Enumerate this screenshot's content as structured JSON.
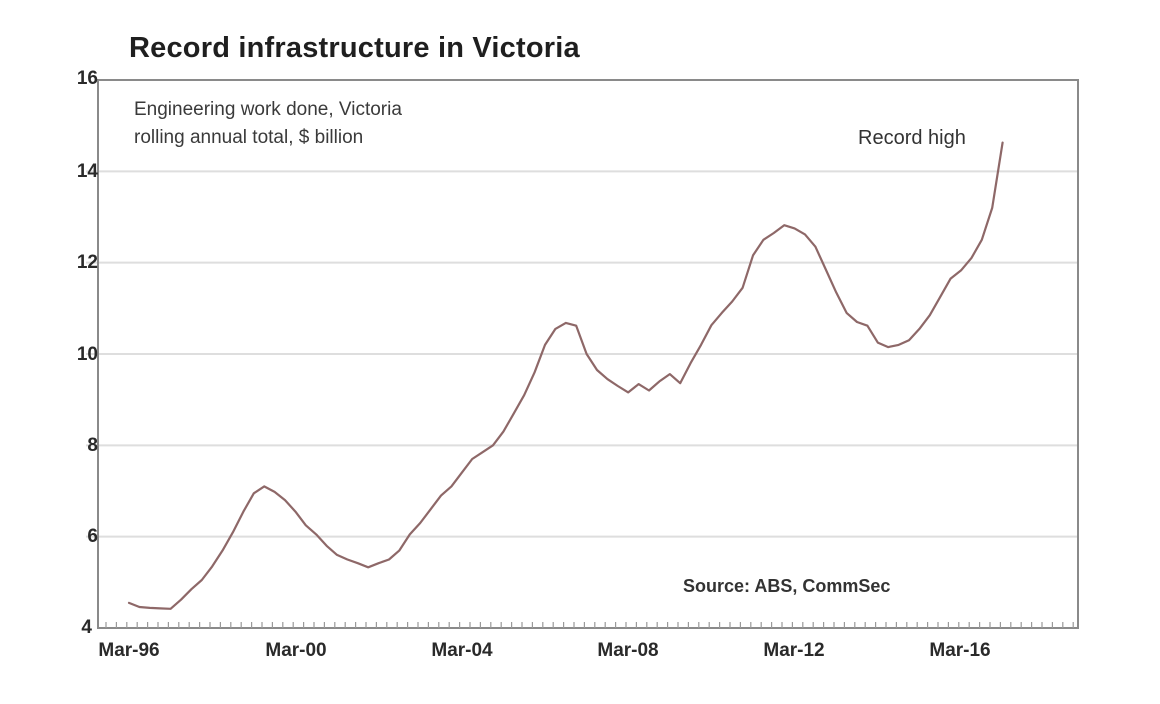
{
  "chart_data": {
    "type": "line",
    "title": "Record infrastructure in Victoria",
    "subtitle": [
      "Engineering work done, Victoria",
      "rolling annual total, $ billion"
    ],
    "xlabel": "",
    "ylabel": "$ billion",
    "ylim": [
      4,
      16
    ],
    "yticks": [
      4,
      6,
      8,
      10,
      12,
      14,
      16
    ],
    "xtick_labels": [
      "Mar-96",
      "Mar-00",
      "Mar-04",
      "Mar-08",
      "Mar-12",
      "Mar-16"
    ],
    "grid": "horizontal",
    "legend": "none",
    "annotations": [
      "Record high",
      "Source: ABS, CommSec"
    ],
    "series": [
      {
        "name": "Engineering work done, Victoria (rolling annual total, $bn)",
        "color": "#8e6868",
        "start": "Mar-96",
        "frequency": "quarterly",
        "values": [
          4.55,
          4.46,
          4.44,
          4.43,
          4.42,
          4.62,
          4.85,
          5.05,
          5.35,
          5.7,
          6.1,
          6.55,
          6.95,
          7.1,
          6.98,
          6.8,
          6.55,
          6.25,
          6.05,
          5.8,
          5.6,
          5.5,
          5.42,
          5.33,
          5.42,
          5.5,
          5.7,
          6.05,
          6.3,
          6.6,
          6.9,
          7.1,
          7.4,
          7.7,
          7.85,
          8.0,
          8.3,
          8.7,
          9.1,
          9.6,
          10.2,
          10.55,
          10.68,
          10.62,
          10.0,
          9.65,
          9.45,
          9.3,
          9.16,
          9.34,
          9.2,
          9.4,
          9.56,
          9.36,
          9.8,
          10.2,
          10.63,
          10.9,
          11.15,
          11.45,
          12.16,
          12.5,
          12.65,
          12.82,
          12.75,
          12.62,
          12.35,
          11.85,
          11.35,
          10.9,
          10.7,
          10.62,
          10.25,
          10.15,
          10.2,
          10.3,
          10.55,
          10.85,
          11.25,
          11.65,
          11.83,
          12.1,
          12.5,
          13.2,
          14.63
        ]
      }
    ]
  },
  "labels": {
    "title": "Record infrastructure in Victoria",
    "subtitle_line1": "Engineering work done, Victoria",
    "subtitle_line2": "rolling annual total, $ billion",
    "annotation": "Record high",
    "source": "Source: ABS, CommSec",
    "y": [
      "16",
      "14",
      "12",
      "10",
      "8",
      "6",
      "4"
    ],
    "x": [
      "Mar-96",
      "Mar-00",
      "Mar-04",
      "Mar-08",
      "Mar-12",
      "Mar-16"
    ]
  }
}
